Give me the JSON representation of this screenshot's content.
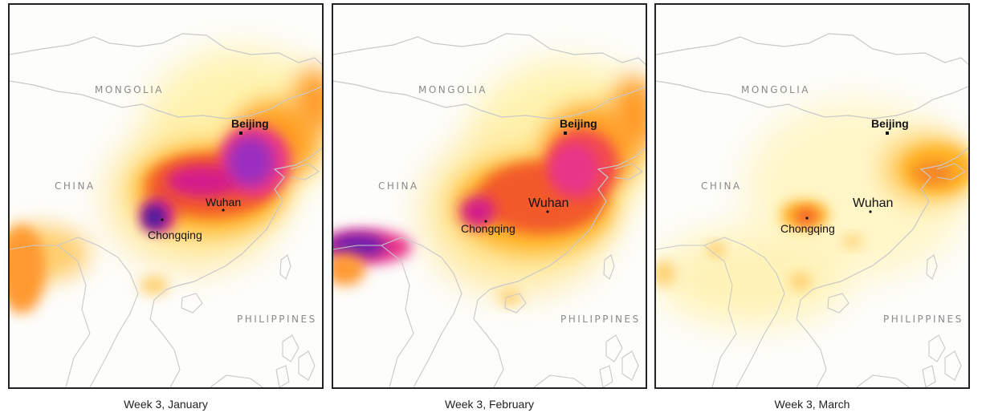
{
  "panels": [
    {
      "caption": "Week 3, January",
      "labels": {
        "mongolia": "MONGOLIA",
        "china": "CHINA",
        "philippines": "PHILIPPINES",
        "beijing": "Beijing",
        "wuhan": "Wuhan",
        "chongqing": "Chongqing"
      }
    },
    {
      "caption": "Week 3, February",
      "labels": {
        "mongolia": "MONGOLIA",
        "china": "CHINA",
        "philippines": "PHILIPPINES",
        "beijing": "Beijing",
        "wuhan": "Wuhan",
        "chongqing": "Chongqing"
      }
    },
    {
      "caption": "Week 3, March",
      "labels": {
        "mongolia": "MONGOLIA",
        "china": "CHINA",
        "philippines": "PHILIPPINES",
        "beijing": "Beijing",
        "wuhan": "Wuhan",
        "chongqing": "Chongqing"
      }
    }
  ],
  "colors": {
    "low": "#fff3b0",
    "mid": "#ffb020",
    "high": "#f25a2a",
    "higher": "#d41f8a",
    "highest": "#5a1aa8",
    "borders": "#c8c8c8",
    "background": "#fdfdfb"
  }
}
